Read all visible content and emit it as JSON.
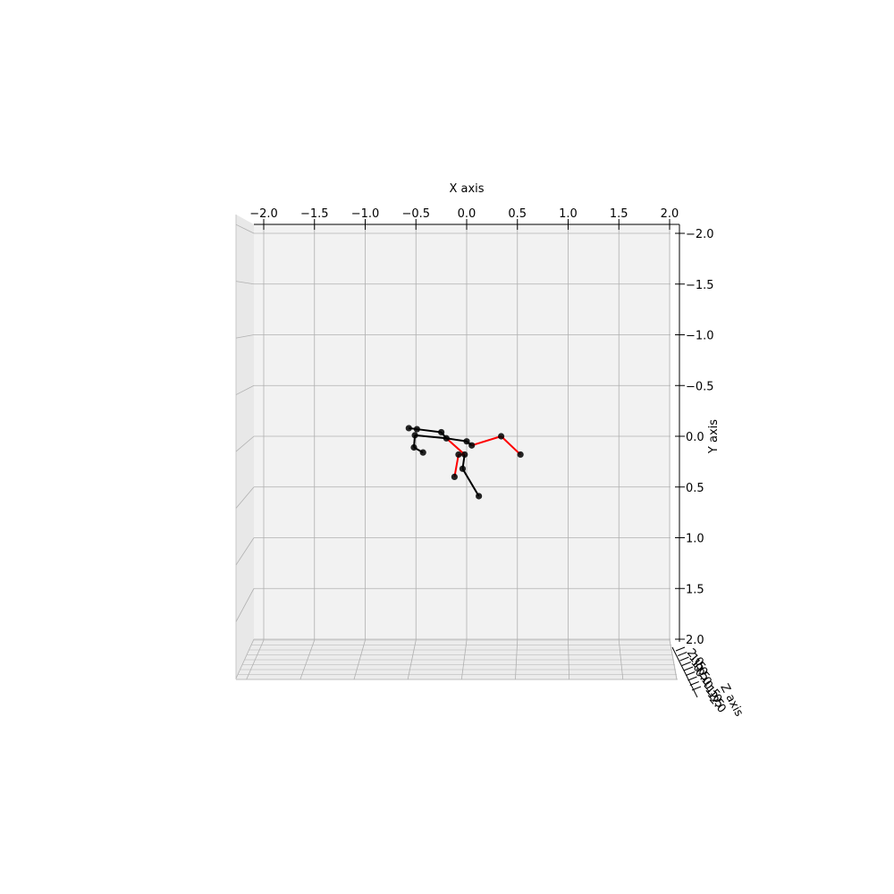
{
  "chart_data": {
    "type": "scatter",
    "projection": "3d",
    "title": "",
    "xlabel": "X axis",
    "ylabel": "Y axis",
    "zlabel": "Z axis",
    "xlim": [
      -2.1,
      2.1
    ],
    "ylim": [
      2.1,
      -2.1
    ],
    "zlim": [
      -2.1,
      2.1
    ],
    "x_ticks": [
      -2.0,
      -1.5,
      -1.0,
      -0.5,
      0.0,
      0.5,
      1.0,
      1.5,
      2.0
    ],
    "x_tick_labels": [
      "−2.0",
      "−1.5",
      "−1.0",
      "−0.5",
      "0.0",
      "0.5",
      "1.0",
      "1.5",
      "2.0"
    ],
    "y_ticks": [
      -2.0,
      -1.5,
      -1.0,
      -0.5,
      0.0,
      0.5,
      1.0,
      1.5,
      2.0
    ],
    "y_tick_labels": [
      "−2.0",
      "−1.5",
      "−1.0",
      "−0.5",
      "0.0",
      "0.5",
      "1.0",
      "1.5",
      "2.0"
    ],
    "z_tick_labels": [
      "2.0",
      "1.5",
      "1.0",
      "0.5",
      "0.0",
      "−0.5",
      "−1.0",
      "−1.5",
      "−2.0"
    ],
    "grid": true,
    "pane_color": "#f2f2f2",
    "grid_color": "#b0b0b0",
    "colors": {
      "left_limbs": "#000000",
      "right_limbs": "#ff0000",
      "joints": "#000000"
    },
    "joints": [
      {
        "x": -0.02,
        "y": 0.18
      },
      {
        "x": -0.08,
        "y": 0.18
      },
      {
        "x": -0.12,
        "y": 0.4
      },
      {
        "x": 0.12,
        "y": 0.59
      },
      {
        "x": -0.04,
        "y": 0.32
      },
      {
        "x": 0.0,
        "y": 0.05
      },
      {
        "x": -0.2,
        "y": 0.02
      },
      {
        "x": 0.05,
        "y": 0.09
      },
      {
        "x": 0.34,
        "y": 0.0
      },
      {
        "x": 0.53,
        "y": 0.18
      },
      {
        "x": -0.25,
        "y": -0.04
      },
      {
        "x": -0.49,
        "y": -0.07
      },
      {
        "x": -0.57,
        "y": -0.08
      },
      {
        "x": -0.51,
        "y": -0.01
      },
      {
        "x": -0.52,
        "y": 0.11
      },
      {
        "x": -0.43,
        "y": 0.16
      }
    ],
    "bones": [
      {
        "from": 0,
        "to": 1,
        "side": "right"
      },
      {
        "from": 1,
        "to": 2,
        "side": "right"
      },
      {
        "from": 0,
        "to": 4,
        "side": "left"
      },
      {
        "from": 4,
        "to": 3,
        "side": "left"
      },
      {
        "from": 0,
        "to": 6,
        "side": "right"
      },
      {
        "from": 6,
        "to": 5,
        "side": "left"
      },
      {
        "from": 5,
        "to": 7,
        "side": "left"
      },
      {
        "from": 7,
        "to": 8,
        "side": "right"
      },
      {
        "from": 8,
        "to": 9,
        "side": "right"
      },
      {
        "from": 6,
        "to": 10,
        "side": "left"
      },
      {
        "from": 10,
        "to": 11,
        "side": "left"
      },
      {
        "from": 11,
        "to": 12,
        "side": "left"
      },
      {
        "from": 6,
        "to": 13,
        "side": "left"
      },
      {
        "from": 13,
        "to": 14,
        "side": "left"
      },
      {
        "from": 14,
        "to": 15,
        "side": "left"
      }
    ]
  }
}
